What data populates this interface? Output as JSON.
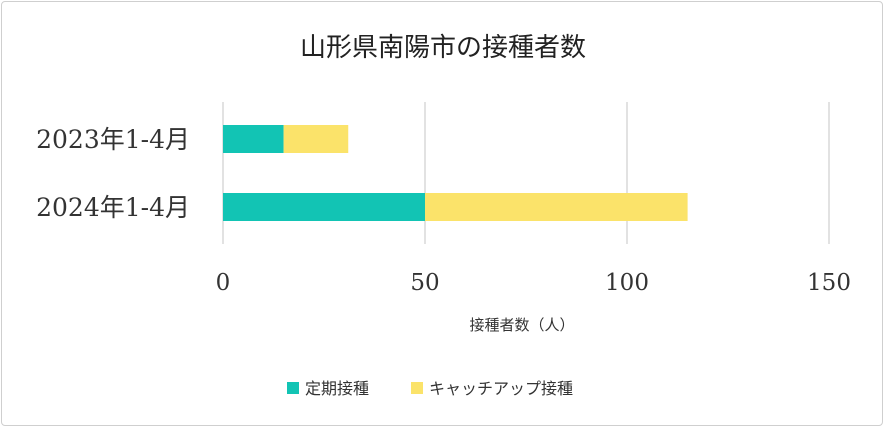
{
  "chart_data": {
    "type": "bar",
    "orientation": "horizontal",
    "stacked": true,
    "title": "山形県南陽市の接種者数",
    "xlabel": "接種者数（人）",
    "ylabel": "",
    "categories": [
      "2023年1-4月",
      "2024年1-4月"
    ],
    "series": [
      {
        "name": "定期接種",
        "values": [
          15,
          50
        ],
        "color": "#12c4b4"
      },
      {
        "name": "キャッチアップ接種",
        "values": [
          16,
          65
        ],
        "color": "#fbe36a"
      }
    ],
    "xlim": [
      0,
      150
    ],
    "xticks": [
      0,
      50,
      100,
      150
    ],
    "xtick_labels": [
      "0",
      "50",
      "100",
      "150"
    ],
    "grid": "vertical",
    "legend_position": "bottom"
  }
}
